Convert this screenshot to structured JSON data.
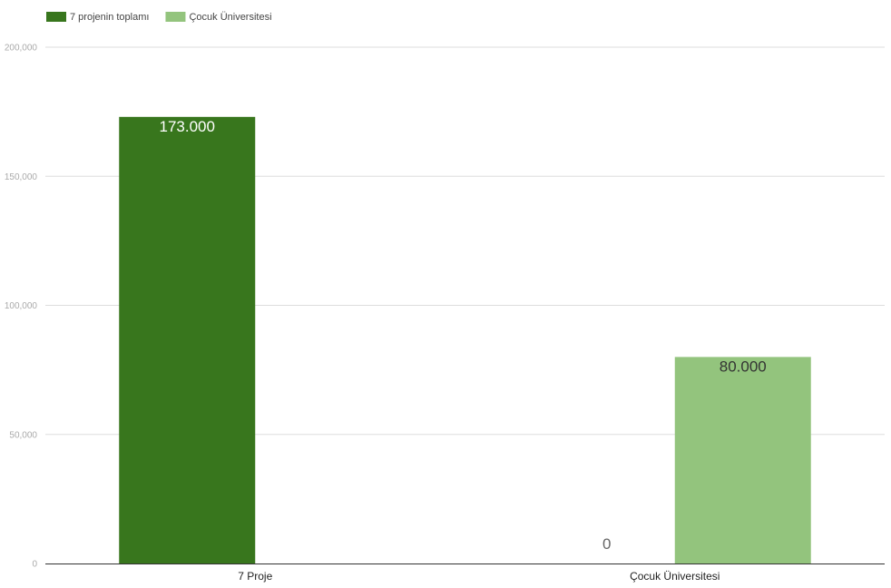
{
  "chart_data": {
    "type": "bar",
    "categories": [
      "7 Proje",
      "Çocuk Üniversitesi"
    ],
    "series": [
      {
        "name": "7 projenin toplamı",
        "values": [
          173000,
          0
        ],
        "color": "#38761d",
        "labels": [
          "173.000",
          "0"
        ]
      },
      {
        "name": "Çocuk Üniversitesi",
        "values": [
          0,
          80000
        ],
        "color": "#93c47d",
        "labels": [
          "",
          "80.000"
        ]
      }
    ],
    "ylim": [
      0,
      200000
    ],
    "yticks": [
      0,
      50000,
      100000,
      150000,
      200000
    ],
    "ytick_labels": [
      "0",
      "50,000",
      "100,000",
      "150,000",
      "200,000"
    ],
    "legend_position": "top-left",
    "grid": true,
    "title": "",
    "xlabel": "",
    "ylabel": ""
  }
}
